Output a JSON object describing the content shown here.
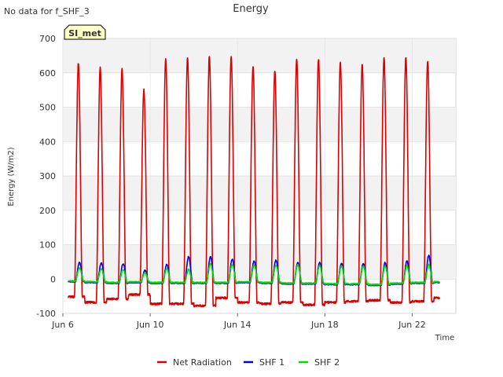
{
  "header": {
    "no_data_note": "No data for f_SHF_3"
  },
  "badge": {
    "label": "SI_met"
  },
  "chart_data": {
    "type": "line",
    "title": "Energy",
    "xlabel": "Time",
    "ylabel": "Energy (W/m2)",
    "ylim": [
      -100,
      700
    ],
    "yticks": [
      -100,
      0,
      100,
      200,
      300,
      400,
      500,
      600,
      700
    ],
    "xlim_days": [
      6,
      24
    ],
    "xticks": [
      {
        "day": 6,
        "label": "Jun 6"
      },
      {
        "day": 10,
        "label": "Jun 10"
      },
      {
        "day": 14,
        "label": "Jun 14"
      },
      {
        "day": 18,
        "label": "Jun 18"
      },
      {
        "day": 22,
        "label": "Jun 22"
      }
    ],
    "grid": true,
    "alternating_bands": true,
    "legend_position": "bottom-center",
    "series": [
      {
        "name": "Net Radiation",
        "color": "#dd0000",
        "night_baseline": [
          -52,
          -68,
          -58,
          -45,
          -72,
          -72,
          -78,
          -55,
          -68,
          -72,
          -68,
          -75,
          -68,
          -65,
          -62,
          -68,
          -65,
          -55
        ],
        "peaks": [
          628,
          615,
          610,
          550,
          640,
          645,
          650,
          645,
          620,
          605,
          640,
          640,
          630,
          625,
          645,
          645,
          635
        ],
        "peak_days": [
          6.75,
          7.75,
          8.75,
          9.75,
          10.75,
          11.75,
          12.75,
          13.75,
          14.75,
          15.75,
          16.75,
          17.75,
          18.75,
          19.75,
          20.75,
          21.75,
          22.75
        ]
      },
      {
        "name": "SHF 1",
        "color": "#0000dd",
        "night_baseline": [
          -8,
          -10,
          -12,
          -10,
          -12,
          -12,
          -12,
          -12,
          -10,
          -12,
          -14,
          -14,
          -16,
          -16,
          -18,
          -14,
          -12,
          -10
        ],
        "peaks": [
          48,
          47,
          45,
          25,
          42,
          65,
          65,
          58,
          52,
          55,
          48,
          48,
          45,
          45,
          48,
          52,
          68
        ],
        "peak_days": [
          6.8,
          7.8,
          8.8,
          9.8,
          10.8,
          11.8,
          12.8,
          13.8,
          14.8,
          15.8,
          16.8,
          17.8,
          18.8,
          19.8,
          20.8,
          21.8,
          22.8
        ]
      },
      {
        "name": "SHF 2",
        "color": "#00dd00",
        "night_baseline": [
          -6,
          -8,
          -10,
          -8,
          -10,
          -10,
          -10,
          -10,
          -8,
          -10,
          -12,
          -12,
          -14,
          -14,
          -16,
          -12,
          -10,
          -8
        ],
        "peaks": [
          32,
          30,
          28,
          18,
          30,
          28,
          45,
          42,
          40,
          40,
          42,
          40,
          38,
          38,
          38,
          38,
          42
        ],
        "peak_days": [
          6.8,
          7.8,
          8.8,
          9.8,
          10.8,
          11.8,
          12.8,
          13.8,
          14.8,
          15.8,
          16.8,
          17.8,
          18.8,
          19.8,
          20.8,
          21.8,
          22.8
        ]
      }
    ]
  }
}
